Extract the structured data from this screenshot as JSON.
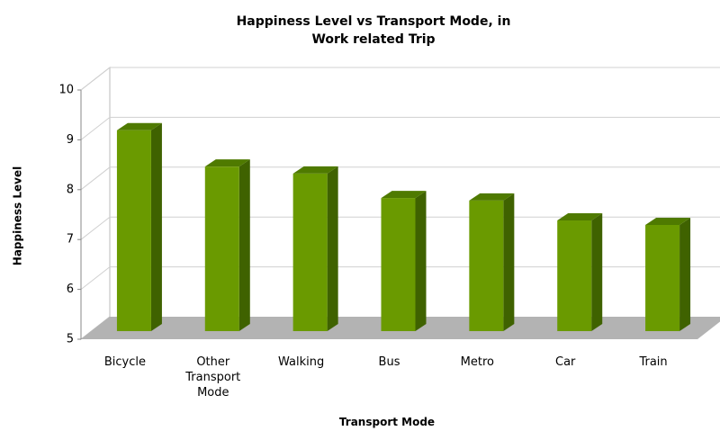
{
  "chart_data": {
    "type": "bar3d",
    "title": "Happiness Level vs Transport Mode, in Work related Trip",
    "x_label": "Transport Mode",
    "y_label": "Happiness Level",
    "categories": [
      "Bicycle",
      "Other Transport Mode",
      "Walking",
      "Bus",
      "Metro",
      "Car",
      "Train"
    ],
    "values": [
      9.03,
      8.3,
      8.16,
      7.67,
      7.62,
      7.22,
      7.13
    ],
    "color": "#6a9a00",
    "ylim": [
      5,
      10
    ],
    "yticks": [
      5,
      6,
      7,
      8,
      9,
      10
    ],
    "grid": true
  }
}
